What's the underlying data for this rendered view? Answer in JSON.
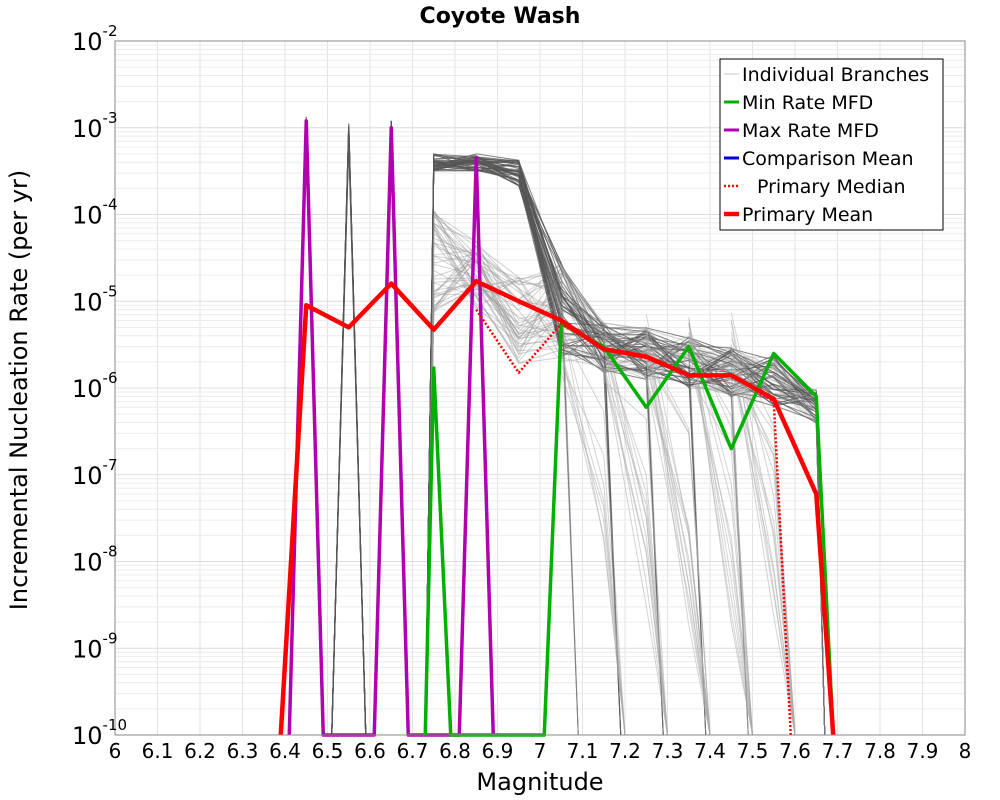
{
  "chart_data": {
    "type": "line",
    "title": "Coyote Wash",
    "xlabel": "Magnitude",
    "ylabel": "Incremental Nucleation Rate (per yr)",
    "xlim": [
      6,
      8
    ],
    "ylim": [
      1e-10,
      0.01
    ],
    "yscale": "log",
    "grid": true,
    "legend_position": "top-right",
    "x_ticks": [
      "6",
      "6.1",
      "6.2",
      "6.3",
      "6.4",
      "6.5",
      "6.6",
      "6.7",
      "6.8",
      "6.9",
      "7",
      "7.1",
      "7.2",
      "7.3",
      "7.4",
      "7.5",
      "7.6",
      "7.7",
      "7.8",
      "7.9",
      "8"
    ],
    "y_ticks": [
      {
        "base": "10",
        "exp": "-10"
      },
      {
        "base": "10",
        "exp": "-9"
      },
      {
        "base": "10",
        "exp": "-8"
      },
      {
        "base": "10",
        "exp": "-7"
      },
      {
        "base": "10",
        "exp": "-6"
      },
      {
        "base": "10",
        "exp": "-5"
      },
      {
        "base": "10",
        "exp": "-4"
      },
      {
        "base": "10",
        "exp": "-3"
      },
      {
        "base": "10",
        "exp": "-2"
      }
    ],
    "legend": [
      {
        "label": "Individual Branches",
        "color": "#c8c8c8",
        "style": "thin"
      },
      {
        "label": "Min Rate MFD",
        "color": "#00b000",
        "style": "solid"
      },
      {
        "label": "Max Rate MFD",
        "color": "#b000b0",
        "style": "solid"
      },
      {
        "label": "Comparison Mean",
        "color": "#0000dd",
        "style": "solid"
      },
      {
        "label": "Primary Median",
        "color": "#ff0000",
        "style": "dotted"
      },
      {
        "label": "Primary Mean",
        "color": "#ff0000",
        "style": "thick"
      }
    ],
    "series": [
      {
        "name": "Primary Mean",
        "color": "#ff0000",
        "x": [
          6.39,
          6.45,
          6.55,
          6.65,
          6.75,
          6.85,
          6.95,
          7.05,
          7.15,
          7.25,
          7.35,
          7.45,
          7.55,
          7.65,
          7.69
        ],
        "values": [
          1e-10,
          9e-06,
          5e-06,
          1.6e-05,
          4.7e-06,
          1.7e-05,
          1e-05,
          6e-06,
          2.8e-06,
          2.3e-06,
          1.4e-06,
          1.4e-06,
          7.5e-07,
          6e-08,
          1e-10
        ]
      },
      {
        "name": "Primary Median",
        "color": "#ff0000",
        "x": [
          6.85,
          6.95,
          7.05,
          7.15,
          7.25,
          7.35,
          7.45,
          7.55,
          7.59
        ],
        "values": [
          8e-06,
          1.5e-06,
          5.5e-06,
          2.8e-06,
          2.2e-06,
          1.4e-06,
          1.4e-06,
          7e-07,
          1e-10
        ]
      },
      {
        "name": "Min Rate MFD",
        "color": "#00b000",
        "x": [
          6.73,
          6.75,
          6.79,
          7.01,
          7.05,
          7.15,
          7.25,
          7.35,
          7.45,
          7.55,
          7.65,
          7.69
        ],
        "values": [
          1e-10,
          1.7e-06,
          1e-10,
          1e-10,
          5.5e-06,
          3e-06,
          6e-07,
          3e-06,
          2e-07,
          2.5e-06,
          8e-07,
          1e-10
        ]
      },
      {
        "name": "Max Rate MFD",
        "color": "#b000b0",
        "x": [
          6.41,
          6.45,
          6.49,
          6.61,
          6.65,
          6.69,
          6.81,
          6.85,
          6.89
        ],
        "values": [
          1e-10,
          0.0012,
          1e-10,
          1e-10,
          0.001,
          1e-10,
          1e-10,
          0.00045,
          1e-10
        ]
      }
    ]
  }
}
